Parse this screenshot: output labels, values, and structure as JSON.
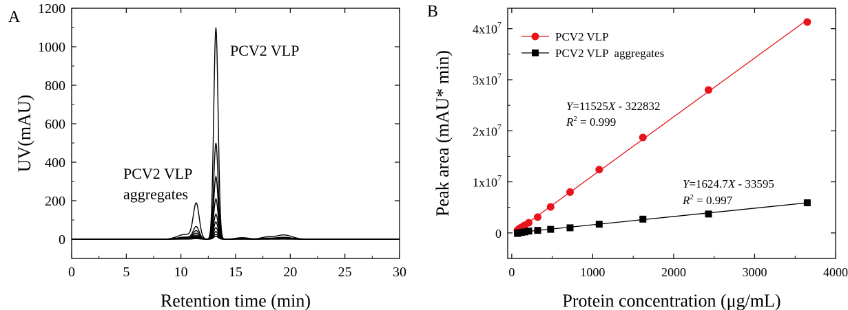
{
  "figure": {
    "panel_a_letter": "A",
    "panel_b_letter": "B"
  },
  "chart_data": [
    {
      "type": "line",
      "panel": "A",
      "xlabel": "Retention time (min)",
      "ylabel": "UV(mAU)",
      "xlim": [
        0,
        30
      ],
      "ylim": [
        -100,
        1200
      ],
      "x_ticks": [
        "0",
        "5",
        "10",
        "15",
        "20",
        "25",
        "30"
      ],
      "y_ticks": [
        "0",
        "200",
        "400",
        "600",
        "800",
        "1000",
        "1200"
      ],
      "annotations": {
        "vlp_peak": "PCV2 VLP",
        "aggregates_line1": "PCV2 VLP",
        "aggregates_line2": "aggregates"
      },
      "peaks": {
        "aggregates_retention_min": 11.4,
        "vlp_retention_min": 13.2
      },
      "series": [
        {
          "vlp_height": 1100,
          "aggregate_height": 180
        },
        {
          "vlp_height": 500,
          "aggregate_height": 62
        },
        {
          "vlp_height": 325,
          "aggregate_height": 42
        },
        {
          "vlp_height": 210,
          "aggregate_height": 30
        },
        {
          "vlp_height": 130,
          "aggregate_height": 20
        },
        {
          "vlp_height": 90,
          "aggregate_height": 14
        },
        {
          "vlp_height": 60,
          "aggregate_height": 10
        },
        {
          "vlp_height": 40,
          "aggregate_height": 7
        },
        {
          "vlp_height": 25,
          "aggregate_height": 5
        },
        {
          "vlp_height": 15,
          "aggregate_height": 3
        }
      ],
      "grid": false
    },
    {
      "type": "scatter",
      "panel": "B",
      "xlabel": "Protein concentration (μg/mL)",
      "ylabel": "Peak area (mAU* min)",
      "xlim": [
        -50,
        4000
      ],
      "ylim": [
        -5000000,
        44000000
      ],
      "x_ticks": [
        "0",
        "1000",
        "2000",
        "3000",
        "4000"
      ],
      "y_ticks": [
        {
          "mantissa": "0",
          "exp": ""
        },
        {
          "mantissa": "1x10",
          "exp": "7"
        },
        {
          "mantissa": "2x10",
          "exp": "7"
        },
        {
          "mantissa": "3x10",
          "exp": "7"
        },
        {
          "mantissa": "4x10",
          "exp": "7"
        }
      ],
      "legend_position": "top-left",
      "series": [
        {
          "name": "PCV2 VLP",
          "color": "#e8141b",
          "marker": "circle",
          "x": [
            70,
            90,
            120,
            160,
            210,
            320,
            480,
            720,
            1080,
            1620,
            2430,
            3650
          ],
          "y": [
            500000,
            800000,
            1100000,
            1500000,
            2000000,
            3100000,
            5100000,
            8000000,
            12400000,
            18700000,
            28000000,
            41300000
          ],
          "fit": {
            "slope": 11525,
            "intercept": -322832
          },
          "equation": {
            "y_var": "Y",
            "rhs_a": "=11525",
            "x_var": "X",
            "rhs_b": " - 322832",
            "r2_label": "R",
            "r2_exp": "2",
            "r2_value": " = 0.999"
          }
        },
        {
          "name": "PCV2 VLP  aggregates",
          "color": "#000000",
          "marker": "square",
          "x": [
            70,
            90,
            120,
            160,
            210,
            320,
            480,
            720,
            1080,
            1620,
            2430,
            3650
          ],
          "y": [
            -100000,
            50000,
            100000,
            200000,
            350000,
            500000,
            700000,
            1000000,
            1700000,
            2700000,
            3700000,
            5900000
          ],
          "fit": {
            "slope": 1624.7,
            "intercept": -33595
          },
          "equation": {
            "y_var": "Y",
            "rhs_a": "=1624.7",
            "x_var": "X",
            "rhs_b": " - 33595",
            "r2_label": "R",
            "r2_exp": "2",
            "r2_value": " = 0.997"
          }
        }
      ],
      "grid": false
    }
  ]
}
